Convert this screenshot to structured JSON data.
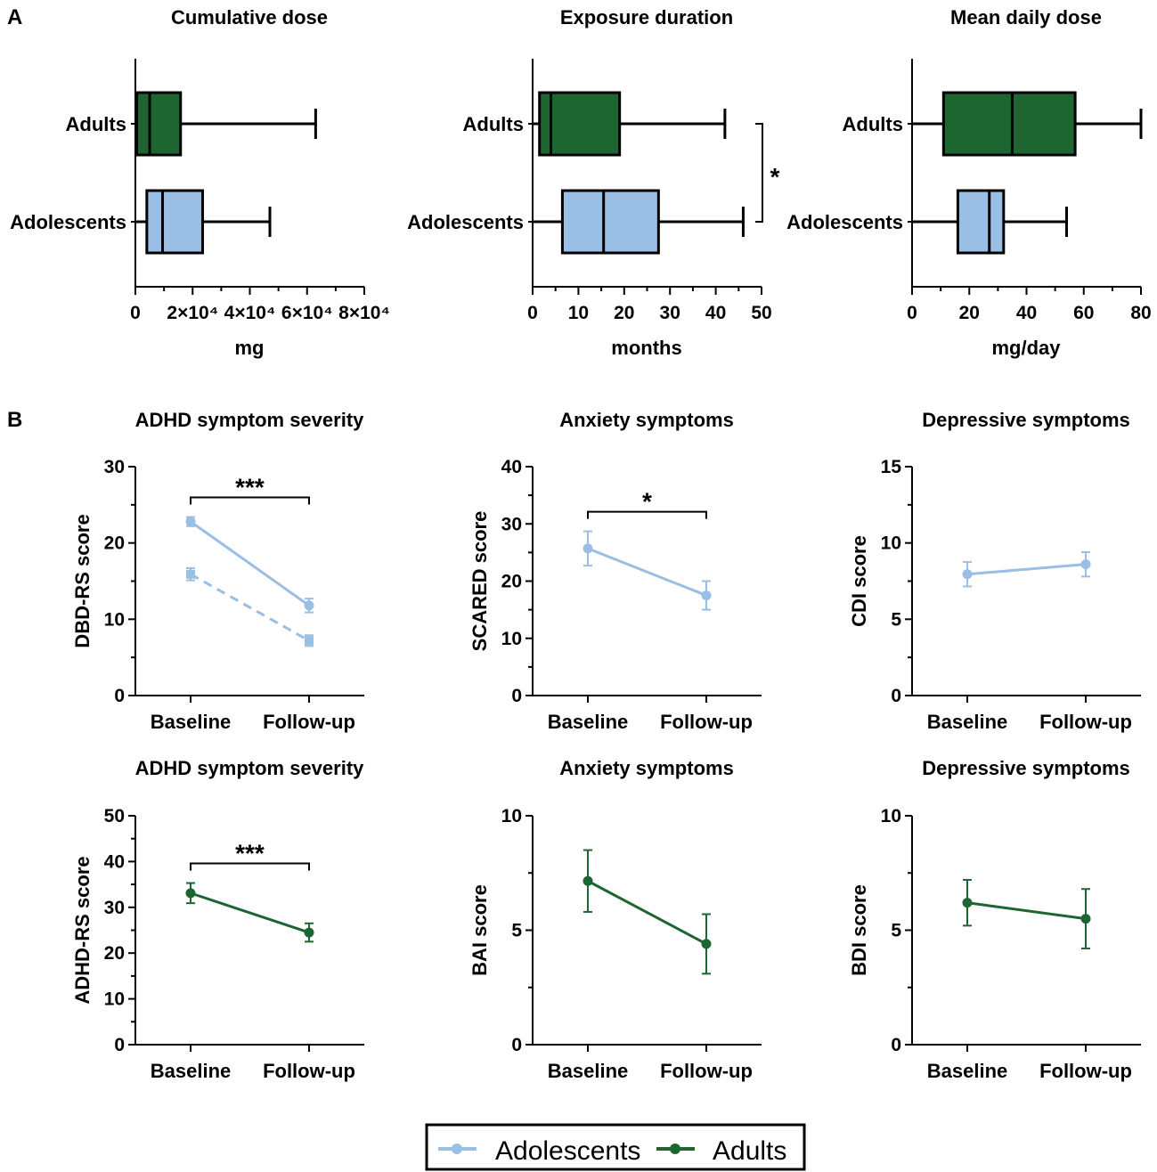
{
  "colors": {
    "adolescents": "#9ABEE4",
    "adults": "#1E6631",
    "axis": "#000000"
  },
  "panel_labels": [
    "A",
    "B"
  ],
  "legend": {
    "items": [
      "Adolescents",
      "Adults"
    ]
  },
  "chart_data": [
    {
      "id": "cumdose",
      "type": "box",
      "title": "Cumulative dose",
      "xlabel": "mg",
      "xlim": [
        0,
        80000
      ],
      "xticks": [
        0,
        20000,
        40000,
        60000,
        80000
      ],
      "xtick_labels": [
        "0",
        "2×10⁴",
        "4×10⁴",
        "6×10⁴",
        "8×10⁴"
      ],
      "groups": [
        {
          "name": "Adults",
          "color": "adults",
          "min": 0,
          "q1": 500,
          "median": 5000,
          "q3": 15800,
          "max": 63000
        },
        {
          "name": "Adolescents",
          "color": "adolescents",
          "min": 0,
          "q1": 4000,
          "median": 9500,
          "q3": 23500,
          "max": 47000
        }
      ]
    },
    {
      "id": "expdur",
      "type": "box",
      "title": "Exposure duration",
      "xlabel": "months",
      "xlim": [
        0,
        50
      ],
      "xticks": [
        0,
        10,
        20,
        30,
        40,
        50
      ],
      "xtick_labels": [
        "0",
        "10",
        "20",
        "30",
        "40",
        "50"
      ],
      "groups": [
        {
          "name": "Adults",
          "color": "adults",
          "min": 0,
          "q1": 1.5,
          "median": 4,
          "q3": 19,
          "max": 42
        },
        {
          "name": "Adolescents",
          "color": "adolescents",
          "min": 0,
          "q1": 6.5,
          "median": 15.5,
          "q3": 27.5,
          "max": 46
        }
      ],
      "significance": "*"
    },
    {
      "id": "dailydose",
      "type": "box",
      "title": "Mean daily dose",
      "xlabel": "mg/day",
      "xlim": [
        0,
        80
      ],
      "xticks": [
        0,
        20,
        40,
        60,
        80
      ],
      "xtick_labels": [
        "0",
        "20",
        "40",
        "60",
        "80"
      ],
      "groups": [
        {
          "name": "Adults",
          "color": "adults",
          "min": 0,
          "q1": 11,
          "median": 35,
          "q3": 57,
          "max": 80
        },
        {
          "name": "Adolescents",
          "color": "adolescents",
          "min": 0,
          "q1": 16,
          "median": 27,
          "q3": 32,
          "max": 54
        }
      ]
    },
    {
      "id": "adhd_adol",
      "type": "line",
      "title": "ADHD symptom severity",
      "ylabel": "DBD-RS score",
      "categories": [
        "Baseline",
        "Follow-up"
      ],
      "ylim": [
        0,
        30
      ],
      "yticks": [
        0,
        10,
        20,
        30
      ],
      "series": [
        {
          "name": "Adolescents",
          "color": "adolescents",
          "dashed": false,
          "marker": "circle",
          "values": [
            22.8,
            11.8
          ],
          "err": [
            0.6,
            0.9
          ]
        },
        {
          "name": "Adolescents",
          "color": "adolescents",
          "dashed": true,
          "marker": "square",
          "values": [
            15.9,
            7.2
          ],
          "err": [
            0.8,
            0.7
          ]
        }
      ],
      "significance": "***"
    },
    {
      "id": "anx_adol",
      "type": "line",
      "title": "Anxiety symptoms",
      "ylabel": "SCARED score",
      "categories": [
        "Baseline",
        "Follow-up"
      ],
      "ylim": [
        0,
        40
      ],
      "yticks": [
        0,
        10,
        20,
        30,
        40
      ],
      "series": [
        {
          "name": "Adolescents",
          "color": "adolescents",
          "dashed": false,
          "marker": "circle",
          "values": [
            25.7,
            17.5
          ],
          "err": [
            3.0,
            2.5
          ]
        }
      ],
      "significance": "*"
    },
    {
      "id": "dep_adol",
      "type": "line",
      "title": "Depressive symptoms",
      "ylabel": "CDI score",
      "categories": [
        "Baseline",
        "Follow-up"
      ],
      "ylim": [
        0,
        15
      ],
      "yticks": [
        0,
        5,
        10,
        15
      ],
      "series": [
        {
          "name": "Adolescents",
          "color": "adolescents",
          "dashed": false,
          "marker": "circle",
          "values": [
            7.95,
            8.6
          ],
          "err": [
            0.8,
            0.8
          ]
        }
      ]
    },
    {
      "id": "adhd_adult",
      "type": "line",
      "title": "ADHD symptom severity",
      "ylabel": "ADHD-RS score",
      "categories": [
        "Baseline",
        "Follow-up"
      ],
      "ylim": [
        0,
        50
      ],
      "yticks": [
        0,
        10,
        20,
        30,
        40,
        50
      ],
      "series": [
        {
          "name": "Adults",
          "color": "adults",
          "dashed": false,
          "marker": "circle",
          "values": [
            33.1,
            24.5
          ],
          "err": [
            2.2,
            2.0
          ]
        }
      ],
      "significance": "***"
    },
    {
      "id": "anx_adult",
      "type": "line",
      "title": "Anxiety symptoms",
      "ylabel": "BAI score",
      "categories": [
        "Baseline",
        "Follow-up"
      ],
      "ylim": [
        0,
        10
      ],
      "yticks": [
        0,
        5,
        10
      ],
      "series": [
        {
          "name": "Adults",
          "color": "adults",
          "dashed": false,
          "marker": "circle",
          "values": [
            7.15,
            4.4
          ],
          "err": [
            1.35,
            1.3
          ]
        }
      ]
    },
    {
      "id": "dep_adult",
      "type": "line",
      "title": "Depressive symptoms",
      "ylabel": "BDI score",
      "categories": [
        "Baseline",
        "Follow-up"
      ],
      "ylim": [
        0,
        10
      ],
      "yticks": [
        0,
        5,
        10
      ],
      "series": [
        {
          "name": "Adults",
          "color": "adults",
          "dashed": false,
          "marker": "circle",
          "values": [
            6.2,
            5.5
          ],
          "err": [
            1.0,
            1.3
          ]
        }
      ]
    }
  ]
}
